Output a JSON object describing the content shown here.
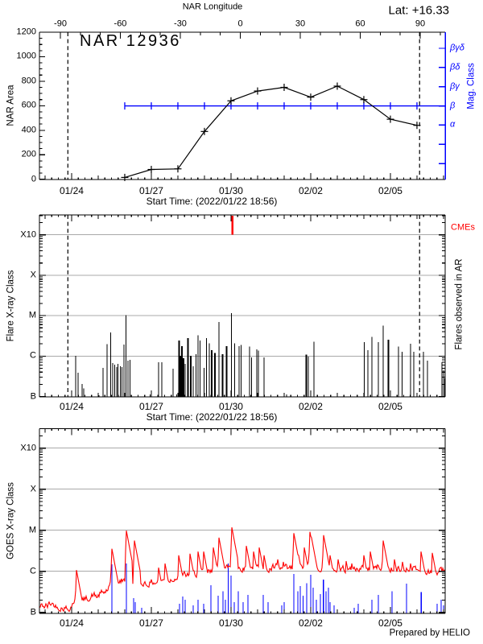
{
  "page": {
    "lat_label": "Lat: +16.33",
    "prepared_by": "Prepared by HELIO"
  },
  "colors": {
    "axis_black": "#000000",
    "mag_blue": "#0000ff",
    "event_red": "#ff0000",
    "grid_gray": "#a9a9a9"
  },
  "time_axis": {
    "start_label": "Start Time: (2022/01/22 18:56)",
    "tick_labels": [
      "01/24",
      "01/27",
      "01/30",
      "02/02",
      "02/05"
    ],
    "tick_days": [
      1.2111,
      4.2111,
      7.2111,
      10.2111,
      13.2111
    ],
    "span_days": 15.27
  },
  "chart_data": [
    {
      "type": "line",
      "title": "NAR 12936",
      "ylabel": "NAR Area",
      "ylim": [
        0,
        1200
      ],
      "yticks": [
        0,
        200,
        400,
        600,
        800,
        1000,
        1200
      ],
      "top_axis": {
        "title": "NAR Longitude",
        "ticks": [
          -90,
          -60,
          -30,
          0,
          30,
          60,
          90
        ],
        "tick_days": [
          0.788,
          3.045,
          5.303,
          7.561,
          9.818,
          12.076,
          14.333
        ]
      },
      "right_axis": {
        "title": "Mag. Class",
        "labels": [
          "βγδ",
          "βδ",
          "βγ",
          "β",
          "α"
        ]
      },
      "series": {
        "dates": [
          "01/26",
          "01/27",
          "01/28",
          "01/29",
          "01/30",
          "01/31",
          "02/01",
          "02/02",
          "02/03",
          "02/04",
          "02/05",
          "02/06"
        ],
        "days": [
          3.2111,
          4.2111,
          5.2111,
          6.2111,
          7.2111,
          8.2111,
          9.2111,
          10.2111,
          11.2111,
          12.2111,
          13.2111,
          14.2111
        ],
        "area": [
          15,
          80,
          85,
          390,
          640,
          720,
          750,
          670,
          760,
          650,
          490,
          440
        ]
      },
      "mag_class_line": {
        "class": "β",
        "class_index": 3,
        "start_day": 3.2111
      },
      "dashed_days": [
        1.07,
        14.31
      ]
    },
    {
      "type": "event-spikes",
      "ylabel": "Flare X-ray Class",
      "yticks": [
        "B",
        "C",
        "M",
        "X",
        "X10"
      ],
      "right_title": "Flares observed in AR",
      "cme_label": "CMEs",
      "cme_days": [
        7.26
      ],
      "dashed_days": [
        1.07,
        14.31
      ],
      "flares": [
        [
          1.36,
          -5.99
        ],
        [
          1.46,
          -6.41
        ],
        [
          1.6,
          -6.69
        ],
        [
          1.66,
          -6.8
        ],
        [
          2.24,
          -6.97
        ],
        [
          2.4,
          -6.29
        ],
        [
          2.54,
          -5.71
        ],
        [
          2.68,
          -5.42
        ],
        [
          2.76,
          -6.17
        ],
        [
          2.84,
          -6.21
        ],
        [
          2.91,
          -6.27
        ],
        [
          2.96,
          -6.19
        ],
        [
          3.04,
          -6.25
        ],
        [
          3.11,
          -6.27
        ],
        [
          3.18,
          -5.72
        ],
        [
          3.26,
          -4.99
        ],
        [
          3.33,
          -6.11
        ],
        [
          3.41,
          -6.09
        ],
        [
          4.17,
          -6.95
        ],
        [
          4.49,
          -6.15
        ],
        [
          4.61,
          -6.15
        ],
        [
          5.03,
          -6.31
        ],
        [
          5.16,
          -6.95
        ],
        [
          5.26,
          -5.62,
          2
        ],
        [
          5.31,
          -5.99,
          2
        ],
        [
          5.36,
          -5.75,
          2
        ],
        [
          5.42,
          -6.05,
          2
        ],
        [
          5.48,
          -6.19
        ],
        [
          5.59,
          -5.56,
          2
        ],
        [
          5.69,
          -5.99,
          2
        ],
        [
          5.79,
          -6.25
        ],
        [
          5.89,
          -5.95
        ],
        [
          5.97,
          -5.49
        ],
        [
          6.04,
          -5.62
        ],
        [
          6.19,
          -6.29
        ],
        [
          6.29,
          -5.56
        ],
        [
          6.39,
          -5.69
        ],
        [
          6.49,
          -5.85,
          2
        ],
        [
          6.6,
          -5.92,
          2
        ],
        [
          6.75,
          -5.16
        ],
        [
          6.9,
          -5.95,
          2
        ],
        [
          7.05,
          -5.75,
          2
        ],
        [
          7.22,
          -4.94
        ],
        [
          7.35,
          -5.69
        ],
        [
          7.51,
          -5.75
        ],
        [
          7.59,
          -5.73
        ],
        [
          7.91,
          -5.76
        ],
        [
          7.99,
          -6.03
        ],
        [
          8.18,
          -5.83
        ],
        [
          8.24,
          -5.86
        ],
        [
          8.46,
          -6.03
        ],
        [
          9.3,
          -6.95
        ],
        [
          10.04,
          -5.96,
          2
        ],
        [
          10.12,
          -6.01
        ],
        [
          10.33,
          -5.65
        ],
        [
          12.23,
          -5.66
        ],
        [
          12.37,
          -5.85
        ],
        [
          12.51,
          -5.53
        ],
        [
          12.76,
          -5.66
        ],
        [
          12.94,
          -5.25
        ],
        [
          13.14,
          -5.6,
          2
        ],
        [
          13.52,
          -5.76
        ],
        [
          13.65,
          -5.89
        ],
        [
          13.97,
          -5.7
        ],
        [
          14.09,
          -5.89
        ],
        [
          14.45,
          -5.89
        ],
        [
          14.6,
          -6.11
        ],
        [
          15.15,
          -6.15
        ],
        [
          15.21,
          -6.35
        ],
        [
          15.26,
          -6.55
        ]
      ]
    },
    {
      "type": "line+spikes",
      "ylabel": "GOES X-ray Class",
      "yticks": [
        "B",
        "C",
        "M",
        "X",
        "X10"
      ],
      "red_baseline": [
        [
          0,
          -6.93
        ],
        [
          0.3,
          -6.95
        ],
        [
          0.45,
          -6.86
        ],
        [
          0.6,
          -6.96
        ],
        [
          0.9,
          -7.0
        ],
        [
          1.15,
          -7.0
        ],
        [
          1.3,
          -6.8
        ],
        [
          1.45,
          -6.7
        ],
        [
          1.6,
          -6.85
        ],
        [
          1.8,
          -6.78
        ],
        [
          2.0,
          -6.7
        ],
        [
          2.2,
          -6.72
        ],
        [
          2.45,
          -6.6
        ],
        [
          2.7,
          -6.45
        ],
        [
          2.9,
          -6.4
        ],
        [
          3.1,
          -6.35
        ],
        [
          3.35,
          -6.3
        ],
        [
          3.55,
          -6.42
        ],
        [
          3.75,
          -6.45
        ],
        [
          3.95,
          -6.38
        ],
        [
          4.2,
          -6.4
        ],
        [
          4.5,
          -6.3
        ],
        [
          4.8,
          -6.32
        ],
        [
          5.1,
          -6.25
        ],
        [
          5.4,
          -6.22
        ],
        [
          5.7,
          -6.18
        ],
        [
          6.0,
          -6.18
        ],
        [
          6.3,
          -6.14
        ],
        [
          6.6,
          -6.1
        ],
        [
          6.9,
          -6.07
        ],
        [
          7.2,
          -5.97
        ],
        [
          7.45,
          -6.0
        ],
        [
          7.7,
          -6.05
        ],
        [
          8.0,
          -6.0
        ],
        [
          8.3,
          -6.03
        ],
        [
          8.6,
          -6.06
        ],
        [
          8.9,
          -6.02
        ],
        [
          9.2,
          -6.06
        ],
        [
          9.5,
          -6.05
        ],
        [
          9.8,
          -6.0
        ],
        [
          10.1,
          -5.98
        ],
        [
          10.4,
          -6.03
        ],
        [
          10.7,
          -6.02
        ],
        [
          11.0,
          -6.04
        ],
        [
          11.3,
          -6.04
        ],
        [
          11.6,
          -6.08
        ],
        [
          11.9,
          -6.05
        ],
        [
          12.2,
          -6.03
        ],
        [
          12.5,
          -6.05
        ],
        [
          12.8,
          -6.0
        ],
        [
          13.1,
          -6.05
        ],
        [
          13.4,
          -6.08
        ],
        [
          13.7,
          -6.06
        ],
        [
          14.0,
          -6.03
        ],
        [
          14.3,
          -6.08
        ],
        [
          14.55,
          -6.12
        ],
        [
          14.8,
          -6.18
        ],
        [
          15.0,
          -6.15
        ],
        [
          15.27,
          -6.05
        ]
      ],
      "red_spikes": [
        [
          1.39,
          -5.97
        ],
        [
          2.73,
          -5.45
        ],
        [
          3.26,
          -5.01
        ],
        [
          3.58,
          -5.25
        ],
        [
          4.48,
          -5.91
        ],
        [
          4.73,
          -5.81
        ],
        [
          5.24,
          -5.61
        ],
        [
          5.67,
          -5.57
        ],
        [
          5.97,
          -5.52
        ],
        [
          6.18,
          -5.52
        ],
        [
          6.55,
          -5.42
        ],
        [
          6.75,
          -5.18
        ],
        [
          7.23,
          -4.93
        ],
        [
          7.79,
          -5.38
        ],
        [
          8.06,
          -5.52
        ],
        [
          8.27,
          -5.42
        ],
        [
          8.45,
          -5.61
        ],
        [
          8.97,
          -5.71
        ],
        [
          9.18,
          -5.77
        ],
        [
          9.58,
          -5.07
        ],
        [
          9.76,
          -5.61
        ],
        [
          9.97,
          -5.42
        ],
        [
          10.18,
          -5.04
        ],
        [
          10.24,
          -5.18
        ],
        [
          10.7,
          -5.12
        ],
        [
          10.94,
          -5.61
        ],
        [
          11.24,
          -5.71
        ],
        [
          11.55,
          -5.75
        ],
        [
          11.76,
          -5.81
        ],
        [
          12.21,
          -5.61
        ],
        [
          12.45,
          -5.52
        ],
        [
          12.93,
          -5.25
        ],
        [
          13.36,
          -5.71
        ],
        [
          13.67,
          -5.77
        ],
        [
          13.97,
          -5.81
        ],
        [
          14.37,
          -5.52
        ],
        [
          14.8,
          -5.55
        ],
        [
          15.12,
          -5.9
        ]
      ],
      "blue_spikes": [
        [
          2.73,
          -5.83
        ],
        [
          3.27,
          -5.81
        ],
        [
          3.55,
          -6.65
        ],
        [
          3.61,
          -6.75
        ],
        [
          3.85,
          -6.89
        ],
        [
          5.27,
          -6.79
        ],
        [
          5.39,
          -6.61
        ],
        [
          5.48,
          -6.69
        ],
        [
          5.79,
          -6.83
        ],
        [
          5.97,
          -6.69
        ],
        [
          6.18,
          -6.79
        ],
        [
          6.45,
          -6.34
        ],
        [
          6.73,
          -6.59
        ],
        [
          6.91,
          -6.49
        ],
        [
          7.0,
          -6.69
        ],
        [
          7.1,
          -5.81
        ],
        [
          7.21,
          -6.1
        ],
        [
          7.33,
          -6.75
        ],
        [
          7.48,
          -6.49
        ],
        [
          7.67,
          -6.75
        ],
        [
          7.85,
          -6.57
        ],
        [
          8.42,
          -6.57
        ],
        [
          8.61,
          -6.75
        ],
        [
          9.12,
          -6.83
        ],
        [
          9.21,
          -6.75
        ],
        [
          9.58,
          -6.06
        ],
        [
          9.73,
          -6.49
        ],
        [
          9.82,
          -6.36
        ],
        [
          9.93,
          -6.59
        ],
        [
          10.06,
          -6.29
        ],
        [
          10.21,
          -6.08
        ],
        [
          10.3,
          -6.4
        ],
        [
          10.42,
          -6.69
        ],
        [
          10.58,
          -6.55
        ],
        [
          10.69,
          -6.2
        ],
        [
          10.79,
          -6.49
        ],
        [
          10.88,
          -6.4
        ],
        [
          10.94,
          -6.75
        ],
        [
          11.09,
          -6.83
        ],
        [
          11.85,
          -6.89
        ],
        [
          12.0,
          -6.79
        ],
        [
          12.52,
          -6.69
        ],
        [
          12.76,
          -6.57
        ],
        [
          13.27,
          -6.49
        ],
        [
          13.82,
          -6.3
        ],
        [
          14.37,
          -6.51
        ],
        [
          14.97,
          -6.79
        ],
        [
          15.12,
          -6.69
        ],
        [
          15.21,
          -6.83
        ]
      ]
    }
  ]
}
